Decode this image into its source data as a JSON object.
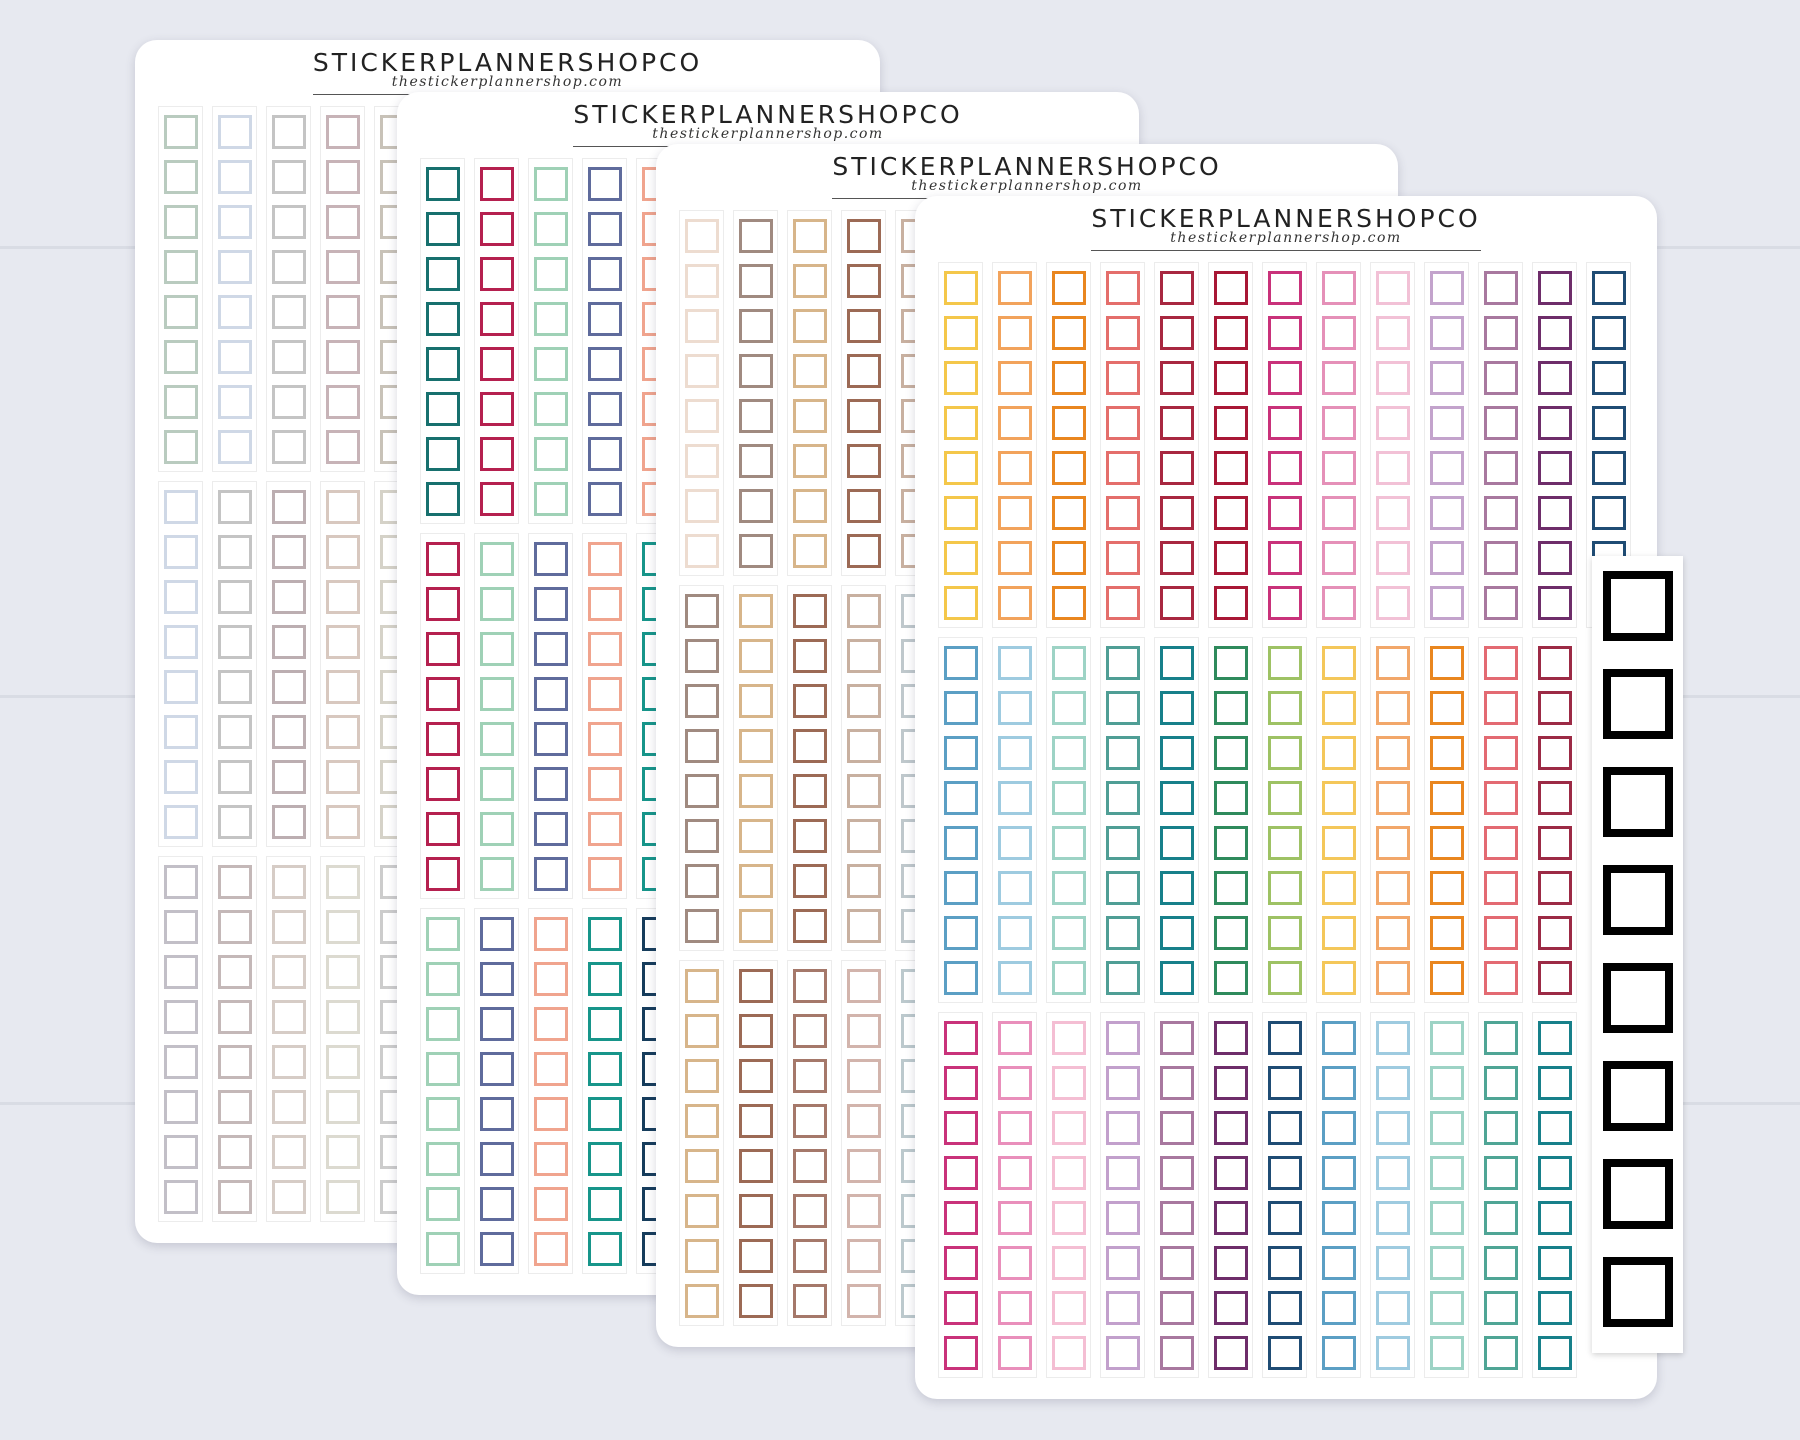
{
  "brand": "STICKERPLANNERSHOPCO",
  "website": "thestickerplannershop.com",
  "sheets": [
    {
      "name": "sheet-neutral",
      "colors": [
        [
          "#b9cbbf",
          "#cfd8e6",
          "#c4c4c4",
          "#c7b3b7",
          "#c8c2b8"
        ],
        [
          "#cfd8e6",
          "#c4c4c4",
          "#bcaeb1",
          "#d8c8bf",
          "#d5d2c8"
        ],
        [
          "#c2bfc7",
          "#c4b8b8",
          "#d6ccc6",
          "#dcdad0",
          "#cccccc"
        ]
      ]
    },
    {
      "name": "sheet-jewel",
      "colors": [
        [
          "#17706e",
          "#b5204f",
          "#9fd1b6",
          "#5f6b9c",
          "#f0a48e"
        ],
        [
          "#b5204f",
          "#9fd1b6",
          "#5f6b9c",
          "#f0a48e",
          "#17958a"
        ],
        [
          "#9fd1b6",
          "#5f6b9c",
          "#f0a48e",
          "#17958a",
          "#163d5c"
        ]
      ]
    },
    {
      "name": "sheet-earth",
      "colors": [
        [
          "#eddcd0",
          "#a08a80",
          "#d7b58a",
          "#9c6a55",
          "#c8b0a0"
        ],
        [
          "#a08a80",
          "#d7b58a",
          "#9c6a55",
          "#c8b0a0",
          "#bfc8cc"
        ],
        [
          "#d7b58a",
          "#9c6a55",
          "#a5786a",
          "#d2b4ac",
          "#bcc9cd"
        ]
      ]
    },
    {
      "name": "sheet-rainbow",
      "colors": [
        [
          "#f4c74a",
          "#f2a35c",
          "#e9861f",
          "#e46e6b",
          "#a82740",
          "#a81735",
          "#c9327a",
          "#e590b8",
          "#f2c1d6",
          "#c3a3cc",
          "#a8789f",
          "#6e2d6a",
          "#1f4c74"
        ],
        [
          "#5b9fc4",
          "#9ecbe0",
          "#9dd3c5",
          "#4f9e95",
          "#17808a",
          "#2e8a5c",
          "#9ec264",
          "#f4c75a",
          "#f2a76a",
          "#e9861f",
          "#e36a72",
          "#9c2a45"
        ],
        [
          "#c9327a",
          "#e98fbb",
          "#f4bed3",
          "#c2a0cc",
          "#a8789f",
          "#6e2d6a",
          "#1f4c74",
          "#5b9fc4",
          "#9ecbe0",
          "#9dd3c5",
          "#4fa595",
          "#17808a"
        ]
      ]
    }
  ],
  "black_strip_color": "#000000"
}
